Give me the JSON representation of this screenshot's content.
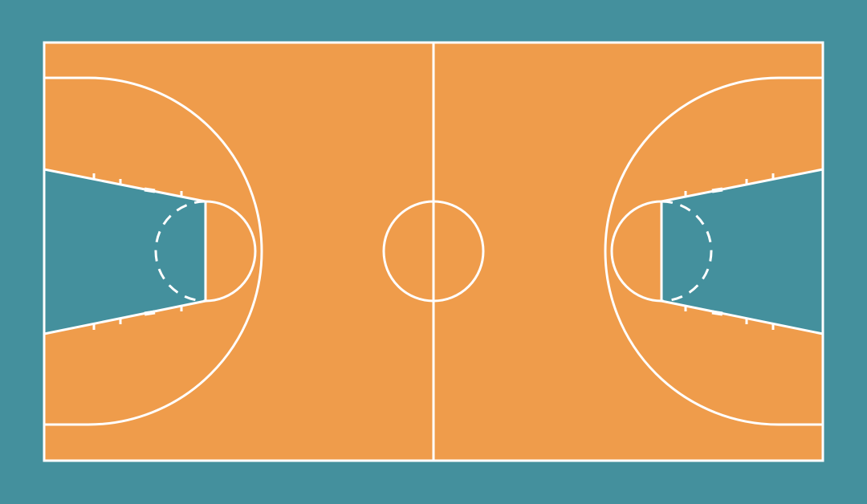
{
  "court": {
    "type": "basketball-full-court",
    "view": "top-down",
    "colors": {
      "background": "#44909d",
      "floor": "#ef9c4b",
      "paint": "#44909d",
      "lines": "#ffffff"
    },
    "elements": [
      "boundary",
      "half-court-line",
      "center-circle",
      "left-three-point-arc",
      "right-three-point-arc",
      "left-key",
      "right-key",
      "left-free-throw-circle",
      "right-free-throw-circle"
    ]
  }
}
